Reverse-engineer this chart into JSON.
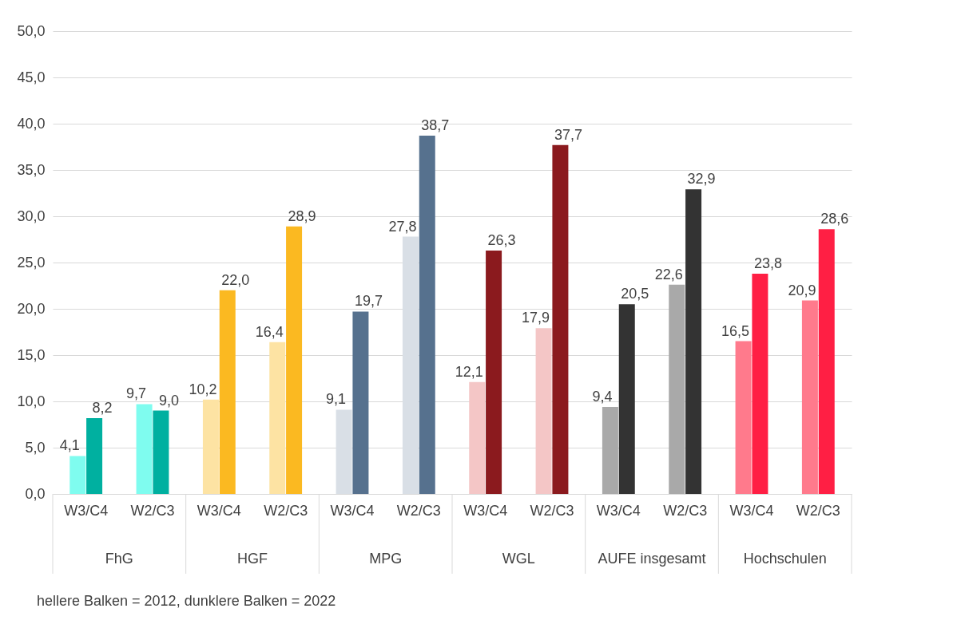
{
  "chart_data": {
    "type": "bar",
    "categories": [
      "W3/C4",
      "W2/C3",
      "W3/C4",
      "W2/C3",
      "W3/C4",
      "W2/C3",
      "W3/C4",
      "W2/C3",
      "W3/C4",
      "W2/C3",
      "W3/C4",
      "W2/C3"
    ],
    "series": [
      {
        "colors": [
          "#7ffcef",
          "#7ffcef",
          "#fde3a3",
          "#fde3a3",
          "#d9dfe6",
          "#d9dfe6",
          "#f4c6c6",
          "#f4c6c6",
          "#a9a9a9",
          "#a9a9a9",
          "#ff7a8c",
          "#ff7a8c"
        ],
        "values": [
          4.1,
          9.7,
          10.2,
          16.4,
          9.1,
          27.8,
          12.1,
          17.9,
          9.4,
          22.6,
          16.5,
          20.9
        ],
        "value_labels": [
          "4,1",
          "9,7",
          "10,2",
          "16,4",
          "9,1",
          "27,8",
          "12,1",
          "17,9",
          "9,4",
          "22,6",
          "16,5",
          "20,9"
        ]
      },
      {
        "colors": [
          "#00b0a0",
          "#00b0a0",
          "#fbb921",
          "#fbb921",
          "#56718e",
          "#56718e",
          "#8b1a1e",
          "#8b1a1e",
          "#333333",
          "#333333",
          "#ff1f44",
          "#ff1f44"
        ],
        "values": [
          8.2,
          9.0,
          22.0,
          28.9,
          19.7,
          38.7,
          26.3,
          37.7,
          20.5,
          32.9,
          23.8,
          28.6
        ],
        "value_labels": [
          "8,2",
          "9,0",
          "22,0",
          "28,9",
          "19,7",
          "38,7",
          "26,3",
          "37,7",
          "20,5",
          "32,9",
          "23,8",
          "28,6"
        ]
      }
    ],
    "ylim": [
      0,
      50
    ],
    "yticks": [
      {
        "value": 0,
        "label": "0,0"
      },
      {
        "value": 5,
        "label": "5,0"
      },
      {
        "value": 10,
        "label": "10,0"
      },
      {
        "value": 15,
        "label": "15,0"
      },
      {
        "value": 20,
        "label": "20,0"
      },
      {
        "value": 25,
        "label": "25,0"
      },
      {
        "value": 30,
        "label": "30,0"
      },
      {
        "value": 35,
        "label": "35,0"
      },
      {
        "value": 40,
        "label": "40,0"
      },
      {
        "value": 45,
        "label": "45,0"
      },
      {
        "value": 50,
        "label": "50,0"
      }
    ],
    "grid": "y",
    "annotations": [
      "FhG",
      "HGF",
      "MPG",
      "WGL",
      "AUFE insgesamt",
      "Hochschulen",
      "hellere Balken = 2012, dunklere Balken = 2022"
    ]
  }
}
